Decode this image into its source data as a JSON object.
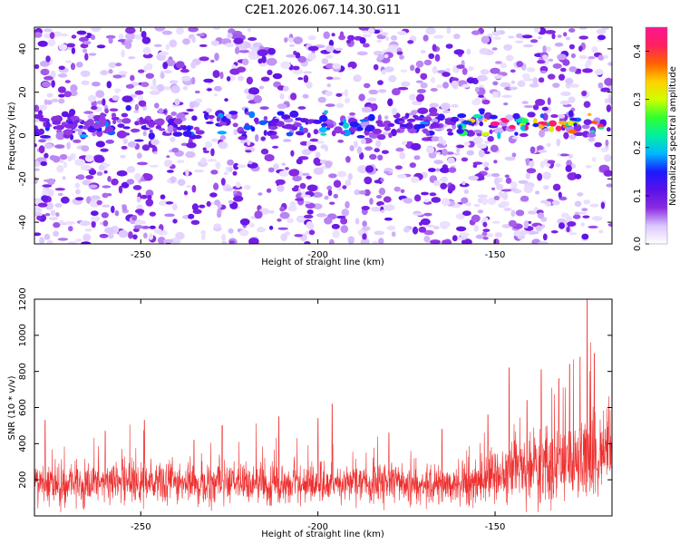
{
  "title": "C2E1.2026.067.14.30.G11",
  "chart_data": [
    {
      "type": "heatmap",
      "xlabel": "Height of straight line (km)",
      "ylabel": "Frequency (Hz)",
      "xlim": [
        -280,
        -117
      ],
      "ylim": [
        -50,
        50
      ],
      "xticks": [
        -250,
        -200,
        -150
      ],
      "yticks": [
        40,
        20,
        0,
        -20,
        -40
      ],
      "xtick_labels": [
        "-250",
        "-200",
        "-150"
      ],
      "ytick_labels": [
        "40",
        "20",
        "0",
        "-20",
        "-40"
      ],
      "colorbar": {
        "label": "Normalized spectral amplitude",
        "range": [
          0.0,
          0.45
        ],
        "ticks": [
          0.0,
          0.1,
          0.2,
          0.3,
          0.4
        ],
        "tick_labels": [
          "0.0",
          "0.1",
          "0.2",
          "0.3",
          "0.4"
        ],
        "colors": [
          "#ffffff",
          "#dcc8ff",
          "#8a2be2",
          "#5a10e8",
          "#1a1aff",
          "#00b8ff",
          "#00f0a0",
          "#30ff30",
          "#d0ff00",
          "#ffd000",
          "#ff6000",
          "#ff2060",
          "#ff1493"
        ]
      },
      "signal_band": {
        "center_hz": 5,
        "width_hz": 6,
        "strong_from_km": -160,
        "strong_to_km": -117,
        "peak_amplitude": 0.45
      }
    },
    {
      "type": "line",
      "xlabel": "Height of straight line (km)",
      "ylabel": "SNR (10 * v/v)",
      "xlim": [
        -280,
        -117
      ],
      "ylim": [
        0,
        1200
      ],
      "xticks": [
        -250,
        -200,
        -150
      ],
      "yticks": [
        200,
        400,
        600,
        800,
        1000,
        1200
      ],
      "xtick_labels": [
        "-250",
        "-200",
        "-150"
      ],
      "ytick_labels": [
        "200",
        "400",
        "600",
        "800",
        "1000",
        "1200"
      ],
      "color": "#ee3030",
      "base_level": 180,
      "peaks": [
        {
          "x": -277,
          "y": 530
        },
        {
          "x": -260,
          "y": 470
        },
        {
          "x": -249,
          "y": 530
        },
        {
          "x": -235,
          "y": 420
        },
        {
          "x": -227,
          "y": 500
        },
        {
          "x": -211,
          "y": 550
        },
        {
          "x": -200,
          "y": 540
        },
        {
          "x": -196,
          "y": 620
        },
        {
          "x": -180,
          "y": 460
        },
        {
          "x": -165,
          "y": 480
        },
        {
          "x": -152,
          "y": 560
        },
        {
          "x": -146,
          "y": 820
        },
        {
          "x": -141,
          "y": 640
        },
        {
          "x": -137,
          "y": 810
        },
        {
          "x": -132,
          "y": 760
        },
        {
          "x": -129,
          "y": 840
        },
        {
          "x": -126,
          "y": 880
        },
        {
          "x": -124,
          "y": 1200
        },
        {
          "x": -122,
          "y": 900
        },
        {
          "x": -118,
          "y": 520
        }
      ]
    }
  ]
}
